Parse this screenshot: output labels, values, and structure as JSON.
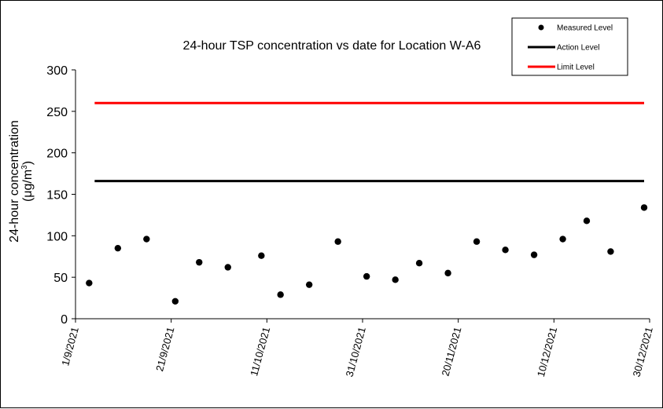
{
  "chart_data": {
    "type": "scatter",
    "title": "24-hour TSP concentration vs date for Location W-A6",
    "xlabel": "",
    "ylabel_line1": "24-hour concentration",
    "ylabel_line2_prefix": "(μg/m",
    "ylabel_line2_sup": "3",
    "ylabel_line2_suffix": ")",
    "xlim": [
      "2021-09-01",
      "2021-12-30"
    ],
    "ylim": [
      0,
      300
    ],
    "y_ticks": [
      "0",
      "50",
      "100",
      "150",
      "200",
      "250",
      "300"
    ],
    "x_ticks": [
      {
        "date": "2021-09-01",
        "label": "1/9/2021"
      },
      {
        "date": "2021-09-21",
        "label": "21/9/2021"
      },
      {
        "date": "2021-10-11",
        "label": "11/10/2021"
      },
      {
        "date": "2021-10-31",
        "label": "31/10/2021"
      },
      {
        "date": "2021-11-20",
        "label": "20/11/2021"
      },
      {
        "date": "2021-12-10",
        "label": "10/12/2021"
      },
      {
        "date": "2021-12-30",
        "label": "30/12/2021"
      }
    ],
    "series": [
      {
        "name": "Measured Level",
        "color": "#000000",
        "points": [
          {
            "x": "2021-09-05",
            "y": 43
          },
          {
            "x": "2021-09-11",
            "y": 85
          },
          {
            "x": "2021-09-17",
            "y": 96
          },
          {
            "x": "2021-09-23",
            "y": 21
          },
          {
            "x": "2021-09-28",
            "y": 68
          },
          {
            "x": "2021-10-04",
            "y": 62
          },
          {
            "x": "2021-10-11",
            "y": 76
          },
          {
            "x": "2021-10-15",
            "y": 29
          },
          {
            "x": "2021-10-21",
            "y": 41
          },
          {
            "x": "2021-10-27",
            "y": 93
          },
          {
            "x": "2021-11-02",
            "y": 51
          },
          {
            "x": "2021-11-08",
            "y": 47
          },
          {
            "x": "2021-11-13",
            "y": 67
          },
          {
            "x": "2021-11-19",
            "y": 55
          },
          {
            "x": "2021-11-25",
            "y": 93
          },
          {
            "x": "2021-12-01",
            "y": 83
          },
          {
            "x": "2021-12-07",
            "y": 77
          },
          {
            "x": "2021-12-13",
            "y": 96
          },
          {
            "x": "2021-12-18",
            "y": 118
          },
          {
            "x": "2021-12-23",
            "y": 81
          },
          {
            "x": "2021-12-30",
            "y": 134
          }
        ]
      },
      {
        "name": "Action Level",
        "color": "#000000",
        "type": "line",
        "points": [
          {
            "x": "2021-09-05",
            "y": 166
          },
          {
            "x": "2021-12-30",
            "y": 166
          }
        ]
      },
      {
        "name": "Limit Level",
        "color": "#ff0000",
        "type": "line",
        "points": [
          {
            "x": "2021-09-05",
            "y": 260
          },
          {
            "x": "2021-12-30",
            "y": 260
          }
        ]
      }
    ],
    "legend_placement": "top-right",
    "grid": false
  }
}
